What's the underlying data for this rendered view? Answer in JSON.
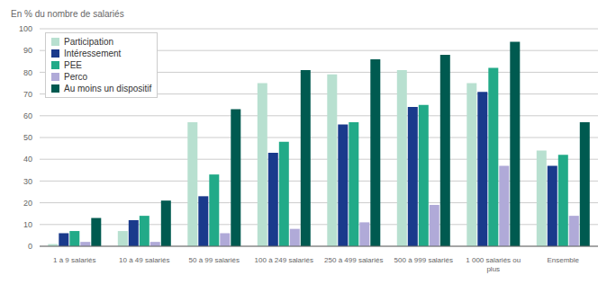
{
  "chart_data": {
    "type": "bar",
    "y_label": "En % du nombre de salariés",
    "categories": [
      "1 à 9 salariés",
      "10 à 49 salariés",
      "50 à 99 salariés",
      "100 à 249 salariés",
      "250 à 499 salariés",
      "500 à 999 salariés",
      "1 000 salariés ou\nplus",
      "Ensemble"
    ],
    "series": [
      {
        "name": "Participation",
        "color": "#b8e0d0",
        "values": [
          1,
          7,
          57,
          75,
          79,
          81,
          75,
          44
        ]
      },
      {
        "name": "Intéressement",
        "color": "#1a3a8c",
        "values": [
          6,
          12,
          23,
          43,
          56,
          64,
          71,
          37
        ]
      },
      {
        "name": "PEE",
        "color": "#22aa88",
        "values": [
          7,
          14,
          33,
          48,
          57,
          65,
          82,
          42
        ]
      },
      {
        "name": "Perco",
        "color": "#b0aad8",
        "values": [
          2,
          2,
          6,
          8,
          11,
          19,
          37,
          14
        ]
      },
      {
        "name": "Au moins un dispositif",
        "color": "#005a50",
        "values": [
          13,
          21,
          63,
          81,
          86,
          88,
          94,
          57
        ]
      }
    ],
    "ylim": [
      0,
      100
    ],
    "yticks": [
      0,
      10,
      20,
      30,
      40,
      50,
      60,
      70,
      80,
      90,
      100
    ],
    "grid": true,
    "legend": "upper left"
  }
}
